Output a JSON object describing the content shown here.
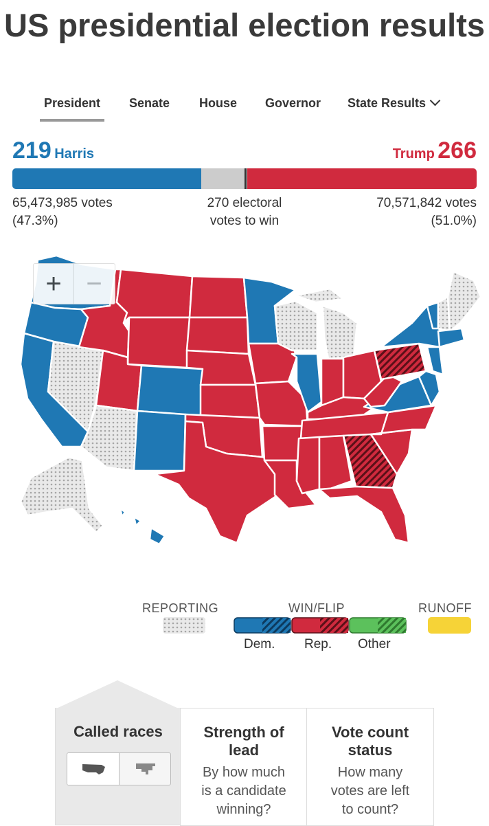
{
  "page_title": "US presidential election results",
  "tabs": [
    {
      "label": "President",
      "active": true
    },
    {
      "label": "Senate"
    },
    {
      "label": "House"
    },
    {
      "label": "Governor"
    },
    {
      "label": "State Results"
    }
  ],
  "harris": {
    "ev": "219",
    "name": "Harris",
    "votes": "65,473,985 votes",
    "pct": "(47.3%)",
    "color": "#1f78b4"
  },
  "trump": {
    "ev": "266",
    "name": "Trump",
    "votes": "70,571,842 votes",
    "pct": "(51.0%)",
    "color": "#d02a3e"
  },
  "threshold": {
    "line1": "270 electoral",
    "line2": "votes to win"
  },
  "bar": {
    "total_ev": 538,
    "dem_ev": 219,
    "rep_ev": 266,
    "win_ev": 270,
    "undecided_color": "#cccccc"
  },
  "zoom": {
    "in_symbol": "+",
    "out_symbol": "−"
  },
  "legend": {
    "reporting": "REPORTING",
    "winflip": "WIN/FLIP",
    "runoff": "RUNOFF",
    "dem": "Dem.",
    "rep": "Rep.",
    "other": "Other",
    "other_color": "#5cc15c",
    "runoff_color": "#f6d337"
  },
  "panels": {
    "called": {
      "title": "Called races"
    },
    "strength": {
      "title_line1": "Strength of",
      "title_line2": "lead",
      "desc_line1": "By how much",
      "desc_line2": "is a candidate",
      "desc_line3": "winning?"
    },
    "count": {
      "title_line1": "Vote count",
      "title_line2": "status",
      "desc_line1": "How many",
      "desc_line2": "votes are left",
      "desc_line3": "to count?"
    }
  }
}
